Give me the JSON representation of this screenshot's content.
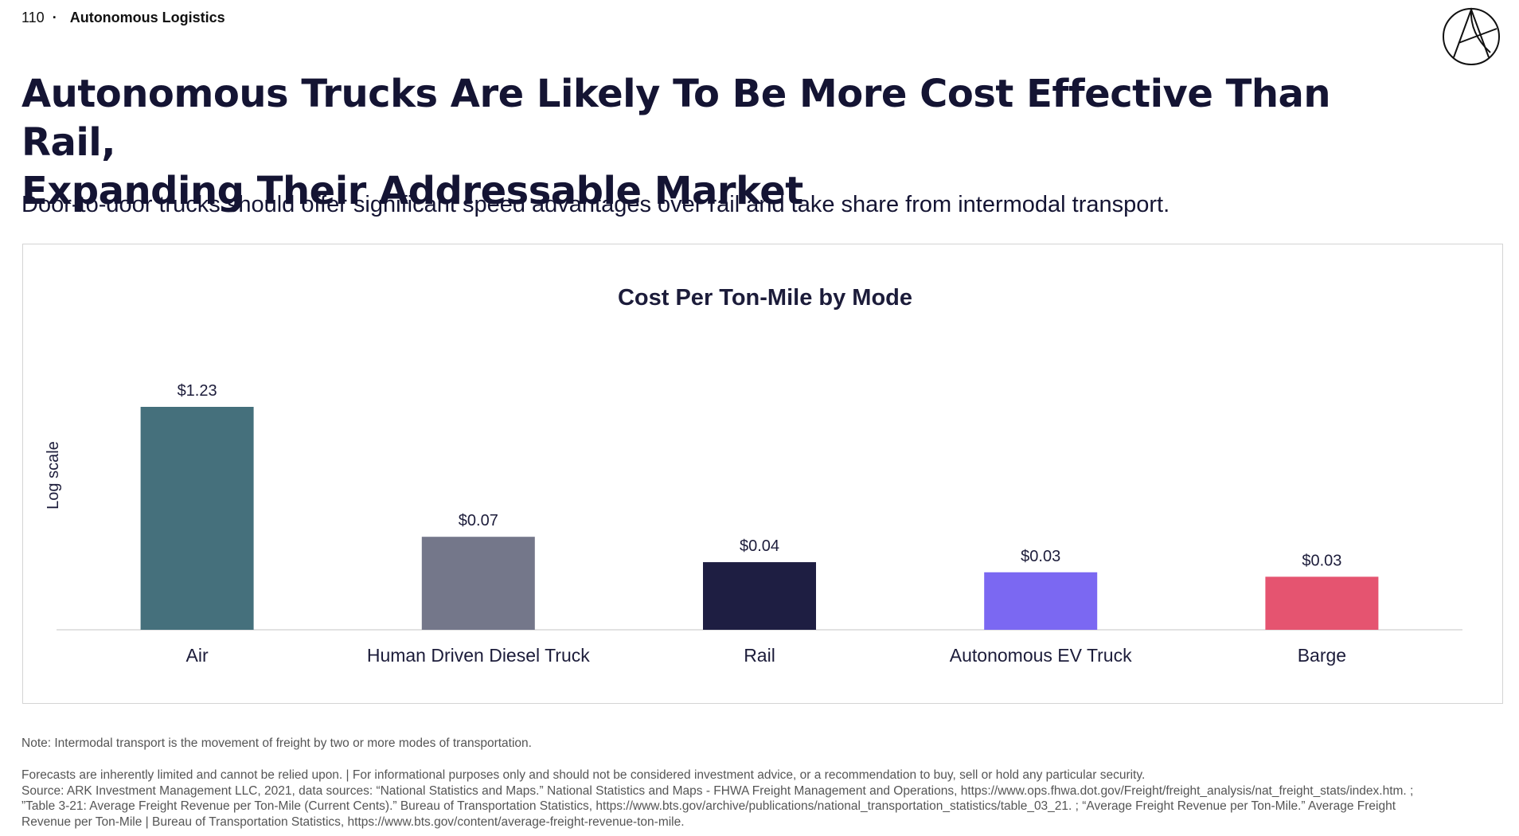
{
  "header": {
    "page_number": "110",
    "separator": "·",
    "section": "Autonomous Logistics"
  },
  "icons": {
    "logo": "ark-logo-icon"
  },
  "title": {
    "line1": "Autonomous Trucks Are Likely To Be More Cost Effective Than Rail,",
    "line2": "Expanding Their Addressable Market"
  },
  "subtitle": "Door-to-door trucks should offer significant speed advantages over rail and take share from intermodal transport.",
  "chart_data": {
    "type": "bar",
    "title": "Cost Per Ton-Mile by Mode",
    "ylabel": "Log scale",
    "xlabel": "",
    "yscale": "log",
    "ylim": [
      0.009,
      1.23
    ],
    "grid": false,
    "categories": [
      "Air",
      "Human Driven Diesel Truck",
      "Rail",
      "Autonomous EV Truck",
      "Barge"
    ],
    "values": [
      1.23,
      0.07,
      0.04,
      0.032,
      0.029
    ],
    "value_labels": [
      "$1.23",
      "$0.07",
      "$0.04",
      "$0.03",
      "$0.03"
    ],
    "colors": [
      "#45707c",
      "#74778a",
      "#1e1e42",
      "#7b68f2",
      "#e55470"
    ],
    "axis_color": "#d9d9d9"
  },
  "footer": {
    "note": "Note: Intermodal transport is the movement of freight by two or more modes of transportation.",
    "disclaimer_lines": [
      "Forecasts are inherently limited and cannot be relied upon. | For informational purposes only and should not be considered investment advice, or a recommendation to buy, sell or hold any particular security.",
      "Source: ARK Investment Management LLC, 2021, data sources: “National Statistics and Maps.” National Statistics and Maps - FHWA Freight Management and Operations, https://www.ops.fhwa.dot.gov/Freight/freight_analysis/nat_freight_stats/index.htm. ;",
      "”Table 3-21: Average Freight Revenue per Ton-Mile (Current Cents).” Bureau of Transportation Statistics, https://www.bts.gov/archive/publications/national_transportation_statistics/table_03_21. ; “Average Freight Revenue per Ton-Mile.” Average Freight",
      "Revenue per Ton-Mile | Bureau of Transportation Statistics, https://www.bts.gov/content/average-freight-revenue-ton-mile."
    ]
  }
}
